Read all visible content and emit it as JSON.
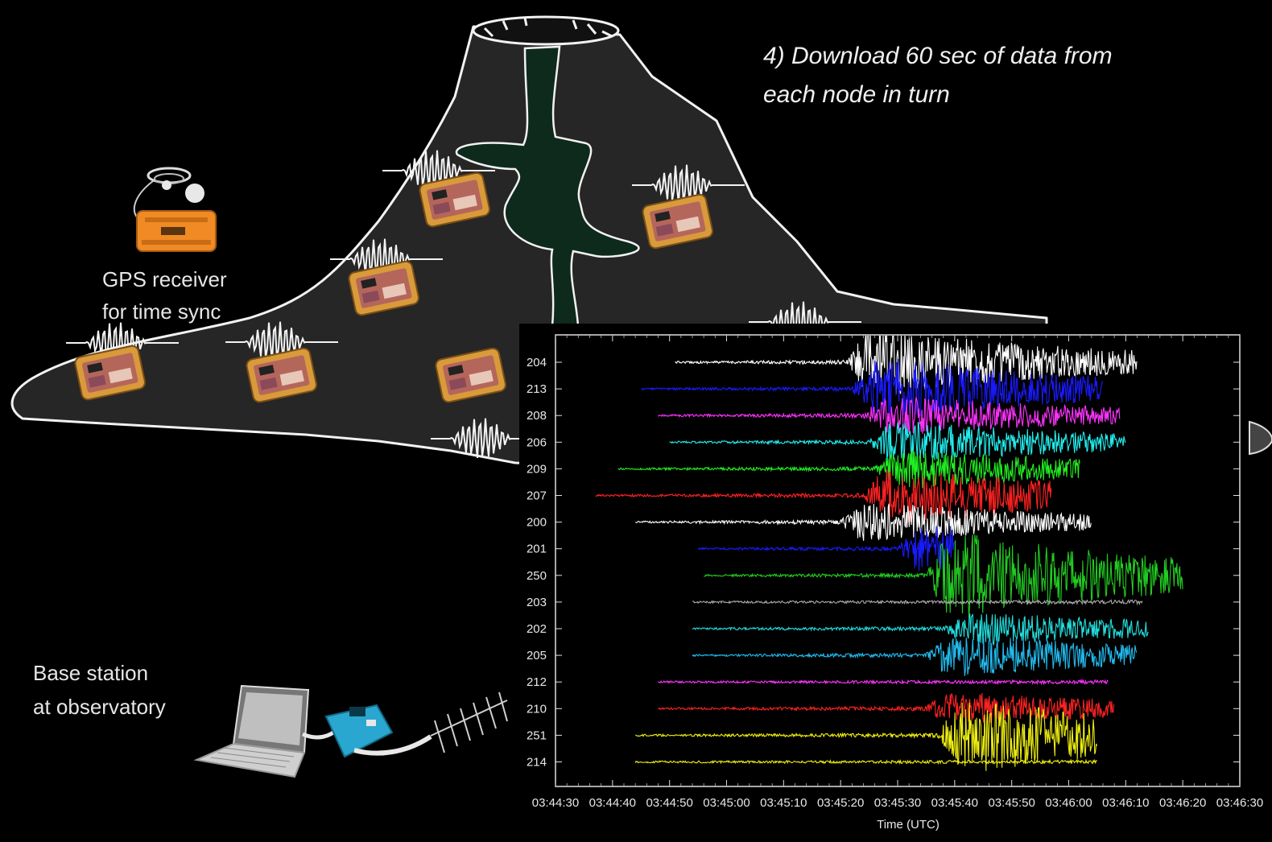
{
  "headline": [
    "4) Download 60 sec of data from",
    "each node in turn"
  ],
  "gps_label": [
    "GPS receiver",
    "for time sync"
  ],
  "base_label": [
    "Base station",
    "at observatory"
  ],
  "colors": {
    "background": "#000000",
    "volcano_fill": "#2a2a2a",
    "magma": "#0d2a1c",
    "node_case": "#d99a3c",
    "gps_case": "#f08a24",
    "radio_modem": "#2aa7d0"
  },
  "icons": [
    "seismic-node-icon",
    "gps-receiver-icon",
    "laptop-icon",
    "radio-modem-icon",
    "yagi-antenna-icon",
    "seismic-wave-icon"
  ],
  "chart_data": {
    "type": "line",
    "xlabel": "Time (UTC)",
    "x_ticks": [
      "03:44:30",
      "03:44:40",
      "03:44:50",
      "03:45:00",
      "03:45:10",
      "03:45:20",
      "03:45:30",
      "03:45:40",
      "03:45:50",
      "03:46:00",
      "03:46:10",
      "03:46:20",
      "03:46:30"
    ],
    "xlim": [
      "03:44:30",
      "03:46:30"
    ],
    "categories": [
      "204",
      "213",
      "208",
      "206",
      "209",
      "207",
      "200",
      "201",
      "250",
      "203",
      "202",
      "205",
      "212",
      "210",
      "251",
      "214"
    ],
    "series": [
      {
        "name": "204",
        "color": "#ffffff",
        "start": "03:44:51",
        "end": "03:46:12",
        "onset": "03:45:21",
        "amp": 1.0
      },
      {
        "name": "213",
        "color": "#1a1aff",
        "start": "03:44:45",
        "end": "03:46:06",
        "onset": "03:45:22",
        "amp": 0.9
      },
      {
        "name": "208",
        "color": "#ff33ff",
        "start": "03:44:48",
        "end": "03:46:09",
        "onset": "03:45:24",
        "amp": 0.55
      },
      {
        "name": "206",
        "color": "#22eeee",
        "start": "03:44:50",
        "end": "03:46:10",
        "onset": "03:45:25",
        "amp": 0.6
      },
      {
        "name": "209",
        "color": "#22ee22",
        "start": "03:44:41",
        "end": "03:46:02",
        "onset": "03:45:26",
        "amp": 0.55
      },
      {
        "name": "207",
        "color": "#ff2222",
        "start": "03:44:37",
        "end": "03:45:57",
        "onset": "03:45:24",
        "amp": 0.8
      },
      {
        "name": "200",
        "color": "#ffffff",
        "start": "03:44:44",
        "end": "03:46:04",
        "onset": "03:45:20",
        "amp": 0.55
      },
      {
        "name": "201",
        "color": "#1a1aff",
        "start": "03:44:55",
        "end": "03:45:40",
        "onset": "03:45:30",
        "amp": 0.7
      },
      {
        "name": "250",
        "color": "#22cc22",
        "start": "03:44:56",
        "end": "03:46:20",
        "onset": "03:45:35",
        "amp": 1.3
      },
      {
        "name": "203",
        "color": "#aaaaaa",
        "start": "03:44:54",
        "end": "03:46:13",
        "onset": "03:46:30",
        "amp": 0.05
      },
      {
        "name": "202",
        "color": "#22dddd",
        "start": "03:44:54",
        "end": "03:46:14",
        "onset": "03:45:38",
        "amp": 0.45
      },
      {
        "name": "205",
        "color": "#22bbee",
        "start": "03:44:54",
        "end": "03:46:12",
        "onset": "03:45:35",
        "amp": 0.6
      },
      {
        "name": "212",
        "color": "#ff33ff",
        "start": "03:44:48",
        "end": "03:46:07",
        "onset": "03:46:30",
        "amp": 0.05
      },
      {
        "name": "210",
        "color": "#ff2222",
        "start": "03:44:48",
        "end": "03:46:08",
        "onset": "03:45:35",
        "amp": 0.45
      },
      {
        "name": "251",
        "color": "#eeee11",
        "start": "03:44:44",
        "end": "03:46:05",
        "onset": "03:45:37",
        "amp": 1.1
      },
      {
        "name": "214",
        "color": "#eeee11",
        "start": "03:44:44",
        "end": "03:46:05",
        "onset": "03:46:30",
        "amp": 0.05
      }
    ]
  }
}
